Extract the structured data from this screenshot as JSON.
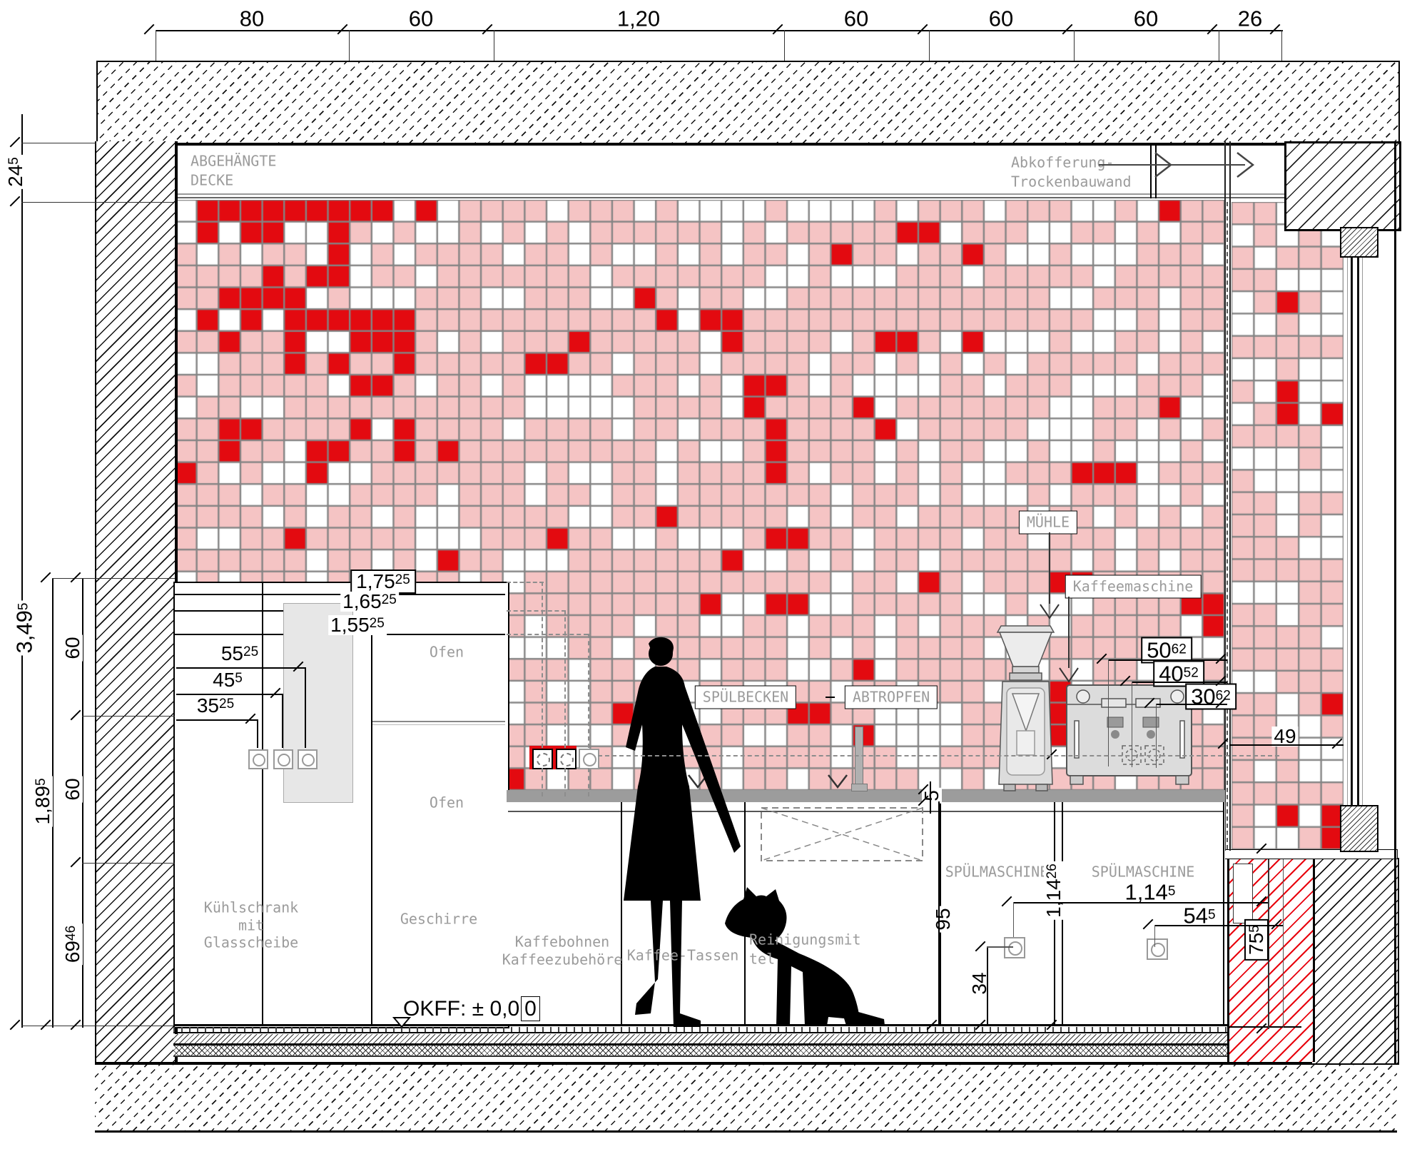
{
  "colors": {
    "tile_pink": "#f5c4c4",
    "tile_red": "#e30a10",
    "tile_white": "#ffffff",
    "grout": "#848484",
    "counter_gray": "#9c9c9c",
    "label_gray": "#9b9b9b",
    "panel_gray": "#e7e7e7",
    "red_hatch": "#e8000d"
  },
  "tiles": {
    "seed": 20,
    "main_cols": 48,
    "main_rows": 27,
    "strip_cols": 5,
    "strip_rows": 29,
    "red_cluster_zone": "top-left",
    "base_red_p": 0.045,
    "cluster_red_p": 0.16,
    "white_p": 0.32
  },
  "labels": {
    "ceiling": {
      "line1": "ABGEHÄNGTE",
      "line2": "DECKE"
    },
    "abkofferung": {
      "line1": "Abkofferung-",
      "line2": "Trockenbauwand"
    },
    "muehle": "MÜHLE",
    "kaffeemaschine": "Kaffeemaschine",
    "spuelbecken": "SPÜLBECKEN",
    "abtropfen": "ABTROPFEN",
    "spuelmaschine_left": "SPÜLMASCHINE",
    "spuelmaschine_right": "SPÜLMASCHINE",
    "kuehlschrank": {
      "line1": "Kühlschrank",
      "line2": "mit",
      "line3": "Glasscheibe"
    },
    "geschirre": "Geschirre",
    "ofen_upper": "Ofen",
    "ofen_lower": "Ofen",
    "kaffebohnen": {
      "line1": "Kaffebohnen",
      "line2": "Kaffeezubehöre"
    },
    "kaffee_tassen": "Kaffee-Tassen",
    "reinigungsmittel": {
      "line1": "Reinigungsmit",
      "line2": "tel"
    },
    "okff_text": "OKFF: ± 0,0",
    "okff_boxed": "0"
  },
  "dimensions": {
    "top": [
      {
        "v": "80"
      },
      {
        "v": "60"
      },
      {
        "v": "1,20"
      },
      {
        "v": "60"
      },
      {
        "v": "60"
      },
      {
        "v": "60"
      },
      {
        "v": "26"
      }
    ],
    "left": {
      "ceiling_offset": {
        "v": "24",
        "s": "5"
      },
      "room_height": {
        "v": "3,49",
        "s": "5"
      },
      "upper_60a": {
        "v": "60"
      },
      "upper_60b": {
        "v": "60"
      },
      "lower_height": {
        "v": "1,89",
        "s": "5"
      },
      "base_height": {
        "v": "69",
        "s": "46"
      }
    },
    "socket_heights": [
      {
        "v": "1,75",
        "s": "25"
      },
      {
        "v": "1,65",
        "s": "25"
      },
      {
        "v": "1,55",
        "s": "25"
      }
    ],
    "socket_offsets": [
      {
        "v": "55",
        "s": "25"
      },
      {
        "v": "45",
        "s": "5"
      },
      {
        "v": "35",
        "s": "25"
      }
    ],
    "machine": [
      {
        "v": "50",
        "s": "62"
      },
      {
        "v": "40",
        "s": "52"
      },
      {
        "v": "30",
        "s": "62"
      }
    ],
    "right": {
      "glass_offset": {
        "v": "49"
      },
      "counter_thickness": {
        "v": "5"
      },
      "counter_height": {
        "v": "95"
      },
      "socket_height": {
        "v": "34"
      },
      "dw_left": {
        "v": "1,14",
        "s": "26"
      },
      "dw_right": {
        "v": "1,14",
        "s": "5"
      },
      "socket_dist": {
        "v": "54",
        "s": "5"
      },
      "knee_wall": {
        "v": "75",
        "s": "5"
      }
    }
  }
}
